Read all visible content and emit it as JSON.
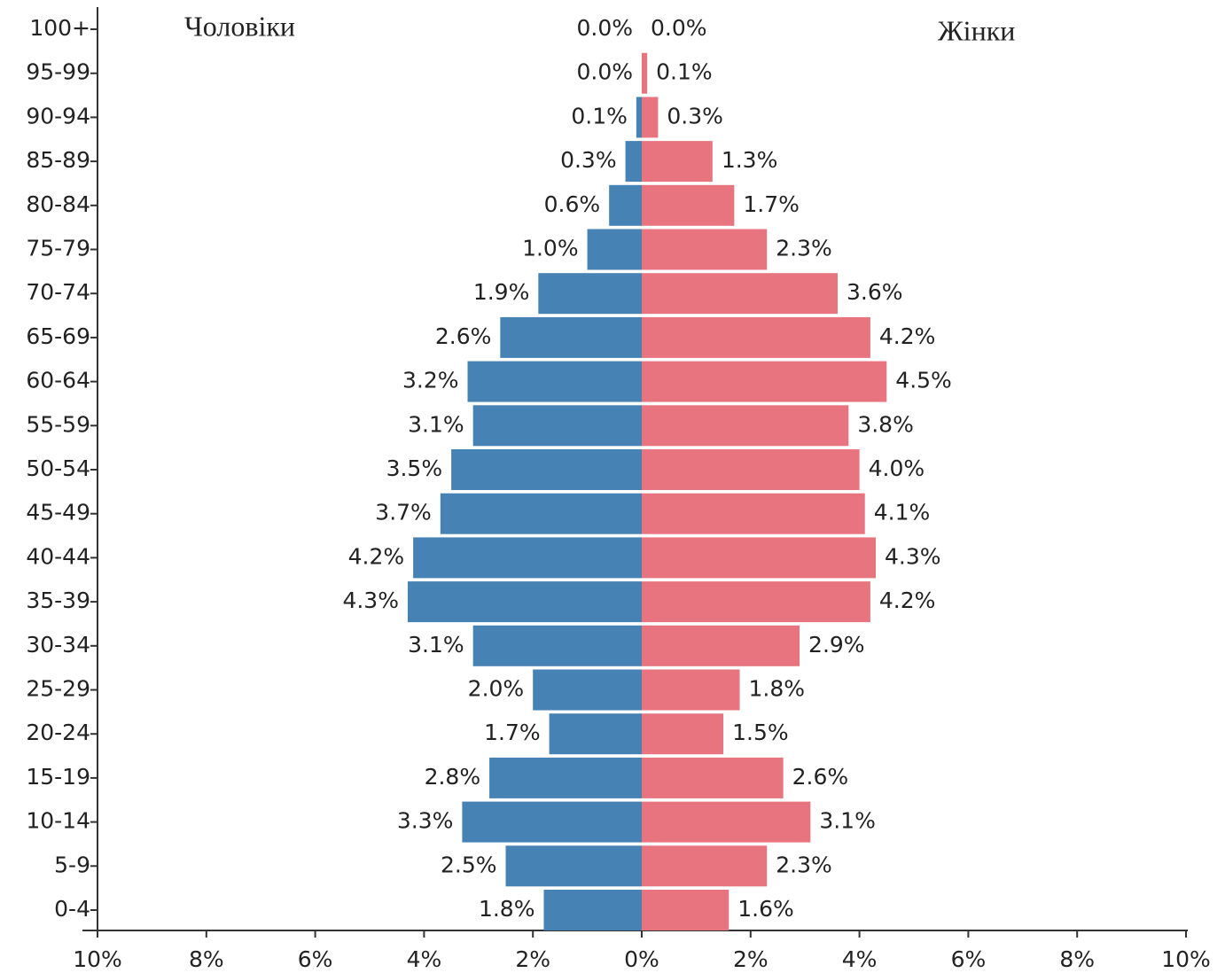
{
  "chart_data": {
    "type": "pyramid",
    "categories": [
      "100+",
      "95-99",
      "90-94",
      "85-89",
      "80-84",
      "75-79",
      "70-74",
      "65-69",
      "60-64",
      "55-59",
      "50-54",
      "45-49",
      "40-44",
      "35-39",
      "30-34",
      "25-29",
      "20-24",
      "15-19",
      "10-14",
      "5-9",
      "0-4"
    ],
    "series": [
      {
        "name": "Чоловіки",
        "color": "#4682b4",
        "side": "left",
        "values": [
          0.0,
          0.0,
          0.1,
          0.3,
          0.6,
          1.0,
          1.9,
          2.6,
          3.2,
          3.1,
          3.5,
          3.7,
          4.2,
          4.3,
          3.1,
          2.0,
          1.7,
          2.8,
          3.3,
          2.5,
          1.8
        ],
        "value_labels": [
          "0.0%",
          "0.0%",
          "0.1%",
          "0.3%",
          "0.6%",
          "1.0%",
          "1.9%",
          "2.6%",
          "3.2%",
          "3.1%",
          "3.5%",
          "3.7%",
          "4.2%",
          "4.3%",
          "3.1%",
          "2.0%",
          "1.7%",
          "2.8%",
          "3.3%",
          "2.5%",
          "1.8%"
        ]
      },
      {
        "name": "Жінки",
        "color": "#e8747f",
        "side": "right",
        "values": [
          0.0,
          0.1,
          0.3,
          1.3,
          1.7,
          2.3,
          3.6,
          4.2,
          4.5,
          3.8,
          4.0,
          4.1,
          4.3,
          4.2,
          2.9,
          1.8,
          1.5,
          2.6,
          3.1,
          2.3,
          1.6
        ],
        "value_labels": [
          "0.0%",
          "0.1%",
          "0.3%",
          "1.3%",
          "1.7%",
          "2.3%",
          "3.6%",
          "4.2%",
          "4.5%",
          "3.8%",
          "4.0%",
          "4.1%",
          "4.3%",
          "4.2%",
          "2.9%",
          "1.8%",
          "1.5%",
          "2.6%",
          "3.1%",
          "2.3%",
          "1.6%"
        ]
      }
    ],
    "xlim": [
      -10,
      10
    ],
    "xticks": [
      {
        "value": -10,
        "label": "10%"
      },
      {
        "value": -8,
        "label": "8%"
      },
      {
        "value": -6,
        "label": "6%"
      },
      {
        "value": -4,
        "label": "4%"
      },
      {
        "value": -2,
        "label": "2%"
      },
      {
        "value": 0,
        "label": "0%"
      },
      {
        "value": 2,
        "label": "2%"
      },
      {
        "value": 4,
        "label": "4%"
      },
      {
        "value": 6,
        "label": "6%"
      },
      {
        "value": 8,
        "label": "8%"
      },
      {
        "value": 10,
        "label": "10%"
      }
    ]
  }
}
